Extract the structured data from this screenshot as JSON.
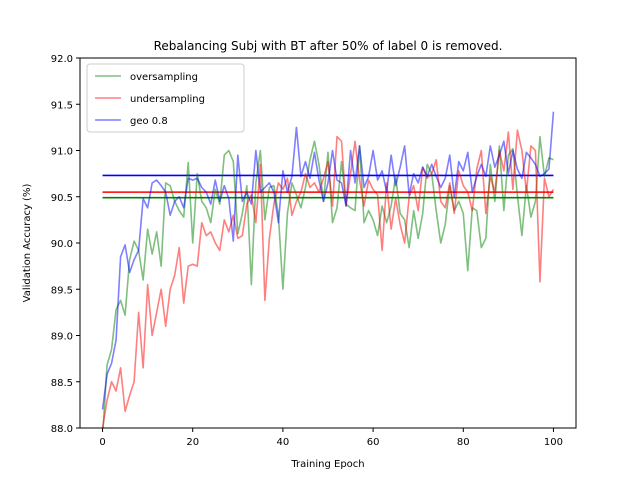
{
  "chart_data": {
    "type": "line",
    "title": "Rebalancing Subj with BT after 50% of label 0 is removed.",
    "xlabel": "Training Epoch",
    "ylabel": "Validation Accuracy (%)",
    "xlim": [
      -5,
      105
    ],
    "ylim": [
      88.0,
      92.0
    ],
    "xticks": [
      0,
      20,
      40,
      60,
      80,
      100
    ],
    "yticks": [
      88.0,
      88.5,
      89.0,
      89.5,
      90.0,
      90.5,
      91.0,
      91.5,
      92.0
    ],
    "ytick_labels": [
      "88.0",
      "88.5",
      "89.0",
      "89.5",
      "90.0",
      "90.5",
      "91.0",
      "91.5",
      "92.0"
    ],
    "grid": false,
    "legend_position": "upper left",
    "series": [
      {
        "name": "oversampling",
        "color": "#008000",
        "values": [
          87.9,
          88.68,
          88.85,
          89.28,
          89.38,
          89.22,
          89.82,
          90.02,
          89.92,
          89.6,
          90.15,
          89.88,
          90.12,
          89.75,
          90.65,
          90.62,
          90.45,
          90.35,
          90.28,
          90.87,
          90.0,
          90.75,
          90.45,
          90.38,
          90.22,
          90.58,
          90.42,
          90.95,
          91.0,
          90.88,
          90.1,
          90.32,
          90.62,
          89.55,
          90.65,
          91.0,
          90.25,
          90.6,
          90.62,
          90.3,
          89.5,
          90.32,
          90.65,
          90.52,
          90.38,
          90.6,
          90.9,
          91.1,
          90.85,
          90.45,
          90.98,
          90.22,
          90.38,
          90.88,
          90.42,
          90.38,
          90.35,
          91.05,
          90.22,
          90.35,
          90.25,
          90.08,
          90.4,
          90.22,
          90.4,
          90.72,
          90.32,
          90.25,
          89.95,
          90.35,
          90.05,
          90.32,
          90.85,
          90.75,
          90.35,
          90.0,
          90.2,
          90.62,
          90.35,
          90.45,
          90.32,
          89.7,
          90.38,
          90.35,
          89.95,
          90.05,
          90.85,
          90.45,
          91.05,
          90.35,
          90.95,
          91.02,
          90.52,
          90.08,
          90.62,
          90.28,
          90.45,
          91.15,
          90.72,
          90.92,
          90.9
        ]
      },
      {
        "name": "undersampling",
        "color": "#ff0000",
        "values": [
          88.0,
          88.3,
          88.5,
          88.4,
          88.65,
          88.18,
          88.35,
          88.5,
          89.25,
          88.65,
          89.55,
          89.0,
          89.25,
          89.5,
          89.1,
          89.5,
          89.65,
          89.95,
          89.35,
          89.75,
          89.77,
          89.75,
          90.22,
          90.08,
          90.12,
          90.0,
          89.92,
          90.25,
          90.12,
          90.3,
          90.05,
          90.08,
          90.42,
          90.52,
          90.22,
          90.85,
          89.38,
          90.05,
          90.42,
          90.65,
          90.58,
          90.7,
          90.3,
          90.45,
          90.55,
          90.75,
          90.6,
          90.65,
          90.55,
          90.7,
          90.88,
          90.4,
          91.15,
          91.1,
          90.4,
          90.75,
          91.1,
          90.68,
          90.4,
          90.68,
          90.58,
          90.52,
          89.92,
          90.65,
          90.15,
          90.48,
          90.2,
          90.0,
          90.5,
          90.62,
          90.35,
          90.82,
          90.7,
          90.75,
          90.9,
          90.45,
          90.38,
          90.65,
          90.32,
          90.78,
          90.62,
          90.55,
          90.35,
          90.8,
          91.0,
          90.32,
          90.72,
          90.55,
          91.0,
          90.78,
          91.2,
          90.58,
          91.22,
          91.0,
          90.55,
          91.05,
          91.0,
          89.58,
          90.7,
          90.5,
          90.58
        ]
      },
      {
        "name": "geo 0.8",
        "color": "#0000ff",
        "values": [
          88.2,
          88.58,
          88.7,
          88.95,
          89.85,
          89.98,
          89.68,
          89.82,
          89.92,
          90.48,
          90.38,
          90.65,
          90.68,
          90.62,
          90.55,
          90.3,
          90.45,
          90.5,
          90.38,
          90.7,
          90.68,
          90.7,
          90.6,
          90.55,
          90.42,
          90.68,
          90.45,
          90.62,
          90.48,
          90.02,
          90.95,
          90.45,
          90.55,
          90.42,
          91.0,
          90.55,
          90.6,
          90.65,
          90.55,
          90.22,
          90.78,
          90.55,
          90.72,
          91.25,
          90.72,
          90.88,
          90.7,
          90.98,
          90.68,
          90.45,
          90.65,
          91.0,
          90.68,
          90.65,
          90.4,
          91.0,
          90.65,
          91.05,
          90.6,
          90.72,
          91.0,
          90.68,
          90.78,
          90.55,
          90.95,
          90.62,
          90.82,
          91.05,
          90.52,
          90.75,
          90.65,
          90.82,
          90.72,
          90.85,
          90.72,
          90.6,
          90.7,
          90.95,
          90.5,
          90.88,
          90.78,
          90.98,
          90.55,
          90.72,
          90.85,
          90.72,
          91.05,
          90.82,
          90.95,
          91.1,
          90.75,
          91.0,
          90.8,
          90.7,
          90.98,
          90.92,
          90.85,
          90.72,
          90.75,
          90.8,
          91.42
        ]
      }
    ],
    "reference_lines": [
      {
        "series": "geo 0.8",
        "color": "#0000ff",
        "y": 90.73,
        "x_start": 0,
        "x_end": 100
      },
      {
        "series": "undersampling",
        "color": "#ff0000",
        "y": 90.55,
        "x_start": 0,
        "x_end": 100
      },
      {
        "series": "oversampling",
        "color": "#008000",
        "y": 90.49,
        "x_start": 0,
        "x_end": 100
      }
    ]
  }
}
